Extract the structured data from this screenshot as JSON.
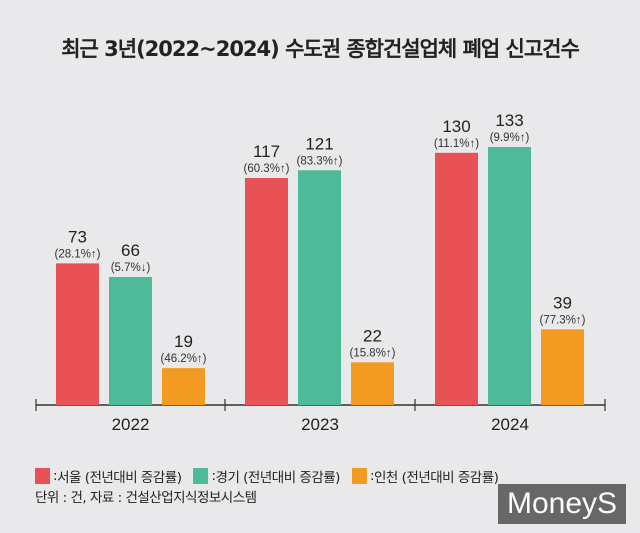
{
  "chart_data": {
    "type": "bar",
    "title": "최근 3년(2022~2024) 수도권 종합건설업체 폐업 신고건수",
    "categories": [
      "2022",
      "2023",
      "2024"
    ],
    "series": [
      {
        "name": "서울 (전년대비 증감률)",
        "color": "#e85257",
        "values": [
          73,
          117,
          130
        ],
        "changes": [
          "(28.1%↑)",
          "(60.3%↑)",
          "(11.1%↑)"
        ]
      },
      {
        "name": "경기 (전년대비 증감률)",
        "color": "#4fba98",
        "values": [
          66,
          121,
          133
        ],
        "changes": [
          "(5.7%↓)",
          "(83.3%↑)",
          "(9.9%↑)"
        ]
      },
      {
        "name": "인천 (전년대비 증감률)",
        "color": "#f29a21",
        "values": [
          19,
          22,
          39
        ],
        "changes": [
          "(46.2%↑)",
          "(15.8%↑)",
          "(77.3%↑)"
        ]
      }
    ],
    "grid": false,
    "legend": "bottom-left"
  },
  "legend_prefix": ": ",
  "note": "단위 : 건, 자료 : 건설산업지식정보시스템",
  "watermark": "MoneyS"
}
